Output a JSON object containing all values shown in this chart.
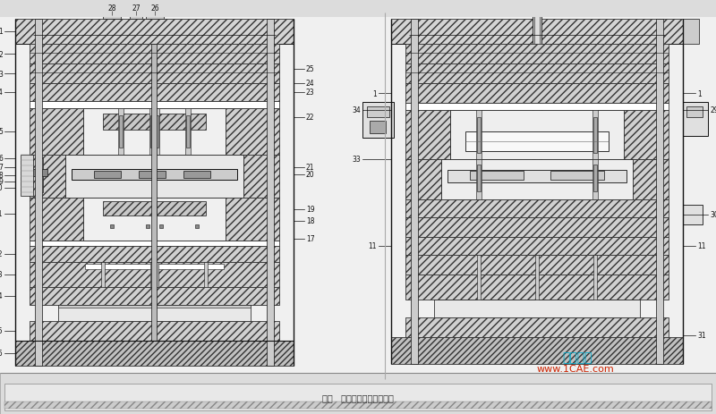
{
  "figsize": [
    8.0,
    4.64
  ],
  "dpi": 100,
  "bg_color": "#b8b8b8",
  "page_color": "#e8e8e8",
  "hatch_fc": "#d0d0d0",
  "hatch_ec": "#333333",
  "line_color": "#111111",
  "white": "#ffffff",
  "light": "#f0f0f0",
  "mid": "#cccccc",
  "dark": "#888888",
  "watermark1": "仿真在线",
  "watermark2": "www.1CAE.com",
  "wc1": "#00aacc",
  "wc2": "#cc2200",
  "bottom_text": "图号   叶层式注射模具结构图"
}
